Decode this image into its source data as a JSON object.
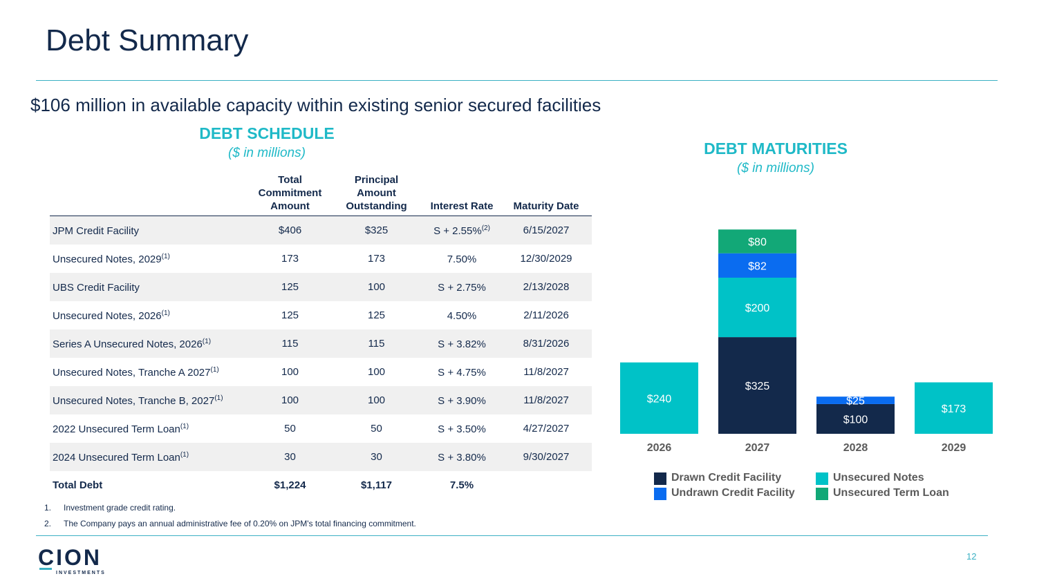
{
  "page": {
    "title": "Debt Summary",
    "subtitle": "$106 million in available capacity within existing senior secured facilities",
    "page_number": "12"
  },
  "schedule": {
    "title": "DEBT SCHEDULE",
    "subtitle": "($ in millions)",
    "headers": {
      "commitment": [
        "Total",
        "Commitment",
        "Amount"
      ],
      "principal": [
        "Principal",
        "Amount",
        "Outstanding"
      ],
      "rate": "Interest Rate",
      "maturity": "Maturity Date"
    },
    "rows": [
      {
        "name": "JPM Credit Facility",
        "note": "",
        "commitment": "$406",
        "principal": "$325",
        "rate": "S + 2.55%",
        "rate_note": "(2)",
        "maturity": "6/15/2027"
      },
      {
        "name": "Unsecured Notes, 2029",
        "note": "(1)",
        "commitment": "173",
        "principal": "173",
        "rate": "7.50%",
        "rate_note": "",
        "maturity": "12/30/2029"
      },
      {
        "name": "UBS Credit Facility",
        "note": "",
        "commitment": "125",
        "principal": "100",
        "rate": "S + 2.75%",
        "rate_note": "",
        "maturity": "2/13/2028"
      },
      {
        "name": "Unsecured Notes, 2026",
        "note": "(1)",
        "commitment": "125",
        "principal": "125",
        "rate": "4.50%",
        "rate_note": "",
        "maturity": "2/11/2026"
      },
      {
        "name": "Series A Unsecured Notes, 2026",
        "note": "(1)",
        "commitment": "115",
        "principal": "115",
        "rate": "S + 3.82%",
        "rate_note": "",
        "maturity": "8/31/2026"
      },
      {
        "name": "Unsecured Notes, Tranche A 2027",
        "note": "(1)",
        "commitment": "100",
        "principal": "100",
        "rate": "S + 4.75%",
        "rate_note": "",
        "maturity": "11/8/2027"
      },
      {
        "name": "Unsecured Notes, Tranche B, 2027",
        "note": "(1)",
        "commitment": "100",
        "principal": "100",
        "rate": "S + 3.90%",
        "rate_note": "",
        "maturity": "11/8/2027"
      },
      {
        "name": "2022 Unsecured Term Loan",
        "note": "(1)",
        "commitment": "50",
        "principal": "50",
        "rate": "S + 3.50%",
        "rate_note": "",
        "maturity": "4/27/2027"
      },
      {
        "name": "2024 Unsecured Term Loan",
        "note": "(1)",
        "commitment": "30",
        "principal": "30",
        "rate": "S + 3.80%",
        "rate_note": "",
        "maturity": "9/30/2027"
      }
    ],
    "total": {
      "name": "Total Debt",
      "commitment": "$1,224",
      "principal": "$1,117",
      "rate": "7.5%",
      "maturity": ""
    }
  },
  "footnotes": [
    {
      "num": "1.",
      "text": "Investment grade credit rating."
    },
    {
      "num": "2.",
      "text": "The Company pays an annual administrative fee of 0.20% on JPM's total financing commitment."
    }
  ],
  "maturities": {
    "title": "DEBT MATURITIES",
    "subtitle": "($ in millions)"
  },
  "chart_data": {
    "type": "bar",
    "stacked": true,
    "categories": [
      "2026",
      "2027",
      "2028",
      "2029"
    ],
    "series": [
      {
        "name": "Drawn Credit Facility",
        "color": "#13294b",
        "values": [
          0,
          325,
          100,
          0
        ]
      },
      {
        "name": "Unsecured Notes",
        "color": "#00c2c7",
        "values": [
          240,
          200,
          0,
          173
        ]
      },
      {
        "name": "Undrawn Credit Facility",
        "color": "#0a6cf0",
        "values": [
          0,
          82,
          25,
          0
        ]
      },
      {
        "name": "Unsecured Term Loan",
        "color": "#12a877",
        "values": [
          0,
          80,
          0,
          0
        ]
      }
    ],
    "data_labels": [
      [
        "",
        "$325",
        "$100",
        ""
      ],
      [
        "$240",
        "$200",
        "",
        "$173"
      ],
      [
        "",
        "$82",
        "$25",
        ""
      ],
      [
        "",
        "$80",
        "",
        ""
      ]
    ],
    "legend_order": [
      "Drawn Credit Facility",
      "Unsecured Notes",
      "Undrawn Credit Facility",
      "Unsecured Term Loan"
    ],
    "legend_position": "bottom",
    "grid": false,
    "ylim": [
      0,
      700
    ]
  },
  "logo": {
    "word": "CION",
    "tagline": "INVESTMENTS"
  },
  "colors": {
    "navy": "#13294b",
    "teal": "#1fb9c7",
    "rule": "#3ab0c3"
  }
}
